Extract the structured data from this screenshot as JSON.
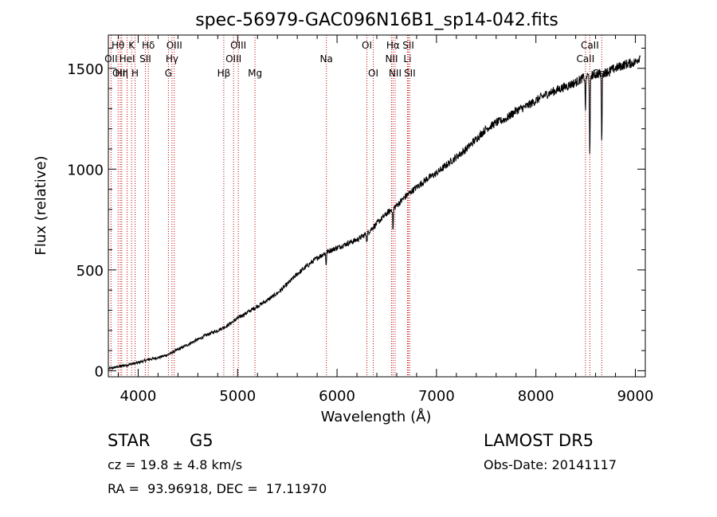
{
  "chart_data": {
    "type": "line",
    "title": "spec-56979-GAC096N16B1_sp14-042.fits",
    "xlabel": "Wavelength (Å)",
    "ylabel": "Flux (relative)",
    "xlim": [
      3700,
      9100
    ],
    "ylim": [
      -30,
      1665
    ],
    "xticks": [
      4000,
      5000,
      6000,
      7000,
      8000,
      9000
    ],
    "yticks": [
      0,
      500,
      1000,
      1500
    ],
    "grid": false,
    "line_color": "#000000",
    "marker_color": "#c00000",
    "series": [
      {
        "x": [
          3700,
          3800,
          3900,
          4000,
          4100,
          4200,
          4300,
          4400,
          4500,
          4600,
          4700,
          4800,
          4900,
          5000,
          5100,
          5200,
          5300,
          5400,
          5500,
          5600,
          5700,
          5800,
          5900,
          6000,
          6100,
          6200,
          6300,
          6400,
          6500,
          6600,
          6700,
          6800,
          6900,
          7000,
          7100,
          7200,
          7300,
          7400,
          7500,
          7600,
          7700,
          7800,
          7900,
          8000,
          8100,
          8200,
          8300,
          8400,
          8500,
          8600,
          8700,
          8800,
          8900,
          9000,
          9050
        ],
        "y": [
          10,
          20,
          30,
          40,
          55,
          65,
          80,
          105,
          130,
          155,
          180,
          200,
          225,
          260,
          290,
          320,
          350,
          385,
          430,
          480,
          520,
          560,
          590,
          610,
          630,
          650,
          680,
          730,
          780,
          820,
          870,
          910,
          950,
          980,
          1020,
          1060,
          1100,
          1150,
          1200,
          1230,
          1250,
          1290,
          1310,
          1340,
          1370,
          1390,
          1410,
          1430,
          1460,
          1470,
          1480,
          1500,
          1520,
          1530,
          1560
        ]
      }
    ],
    "absorption_dips": [
      {
        "x": 5890,
        "depth": 60
      },
      {
        "x": 6300,
        "depth": 40
      },
      {
        "x": 6563,
        "depth": 110
      },
      {
        "x": 8498,
        "depth": 160
      },
      {
        "x": 8542,
        "depth": 420
      },
      {
        "x": 8662,
        "depth": 330
      }
    ],
    "line_markers": [
      {
        "x": 3727,
        "label": "OII",
        "row": 2
      },
      {
        "x": 3798,
        "label": "Hθ",
        "row": 1
      },
      {
        "x": 3820,
        "label": "OIII",
        "row": 3
      },
      {
        "x": 3835,
        "label": "Hη",
        "row": 3
      },
      {
        "x": 3889,
        "label": "HeI",
        "row": 2
      },
      {
        "x": 3934,
        "label": "K",
        "row": 1
      },
      {
        "x": 3969,
        "label": "H",
        "row": 3
      },
      {
        "x": 4072,
        "label": "SII",
        "row": 2
      },
      {
        "x": 4102,
        "label": "Hδ",
        "row": 1
      },
      {
        "x": 4304,
        "label": "G",
        "row": 3
      },
      {
        "x": 4340,
        "label": "Hγ",
        "row": 2
      },
      {
        "x": 4363,
        "label": "OIII",
        "row": 1
      },
      {
        "x": 4861,
        "label": "Hβ",
        "row": 3
      },
      {
        "x": 4959,
        "label": "OIII",
        "row": 2
      },
      {
        "x": 5007,
        "label": "OIII",
        "row": 1
      },
      {
        "x": 5175,
        "label": "Mg",
        "row": 3
      },
      {
        "x": 5893,
        "label": "Na",
        "row": 2
      },
      {
        "x": 6300,
        "label": "OI",
        "row": 1
      },
      {
        "x": 6364,
        "label": "OI",
        "row": 3
      },
      {
        "x": 6548,
        "label": "NII",
        "row": 2
      },
      {
        "x": 6563,
        "label": "Hα",
        "row": 1
      },
      {
        "x": 6584,
        "label": "NII",
        "row": 3
      },
      {
        "x": 6708,
        "label": "Li",
        "row": 2
      },
      {
        "x": 6717,
        "label": "SII",
        "row": 1
      },
      {
        "x": 6731,
        "label": "SII",
        "row": 3
      },
      {
        "x": 8498,
        "label": "CaII",
        "row": 2
      },
      {
        "x": 8542,
        "label": "CaII",
        "row": 1
      },
      {
        "x": 8662,
        "label": "CaII",
        "row": 3
      }
    ]
  },
  "info": {
    "object_class": "STAR",
    "subclass": "G5",
    "survey": "LAMOST DR5",
    "redshift": "cz = 19.8 ± 4.8 km/s",
    "obs_date": "Obs-Date: 20141117",
    "coords": "RA =  93.96918, DEC =  17.11970"
  }
}
